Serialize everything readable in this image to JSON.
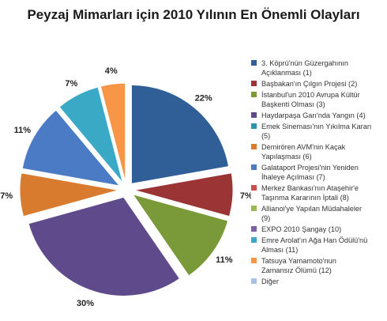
{
  "chart_data": {
    "type": "pie",
    "title": "Peyzaj Mimarları için 2010 Yılının En Önemli Olayları",
    "legend_position": "right",
    "slices": [
      {
        "label": "3. Köprü'nün Güzergahının\nAçıklanması (1)",
        "value": 22,
        "display": "22%",
        "color": "#2f5f96"
      },
      {
        "label": "Başbakan'ın Çılgın Projesi (2)",
        "value": 7,
        "display": "7%",
        "color": "#9b3434"
      },
      {
        "label": "İstanbul'un 2010 Avrupa Kültür\nBaşkenti Olması (3)",
        "value": 11,
        "display": "11%",
        "color": "#7a9a3a"
      },
      {
        "label": "Haydarpaşa Garı'nda Yangın (4)",
        "value": 30,
        "display": "30%",
        "color": "#5f4a8b"
      },
      {
        "label": "Emek Sineması'nın Yıkılma Kararı\n(5)",
        "value": 0,
        "display": "",
        "color": "#2e93ad"
      },
      {
        "label": "Demirören AVM'nin Kaçak\nYapılaşması (6)",
        "value": 7,
        "display": "7%",
        "color": "#d97b2f"
      },
      {
        "label": "Galataport Projesi'nin Yeniden\nİhaleye Açılması (7)",
        "value": 11,
        "display": "11%",
        "color": "#4a7bc4"
      },
      {
        "label": "Merkez Bankası'nın Ataşehir'e\nTaşınma Kararının İptali (8)",
        "value": 0,
        "display": "",
        "color": "#c9504f"
      },
      {
        "label": "Allianoi'ye Yapılan Müdahaleler\n(9)",
        "value": 0,
        "display": "",
        "color": "#98b954"
      },
      {
        "label": "EXPO 2010 Şangay (10)",
        "value": 0,
        "display": "",
        "color": "#7b60a8"
      },
      {
        "label": "Emre Arolat'ın Ağa Han Ödülü'nü\nAlması (11)",
        "value": 7,
        "display": "7%",
        "color": "#3aa9c6"
      },
      {
        "label": "Tatsuya Yamamoto'nun\nZamansız Ölümü (12)",
        "value": 4,
        "display": "4%",
        "color": "#f79646"
      },
      {
        "label": "Diğer",
        "value": 0,
        "display": "",
        "color": "#a9c1e6"
      }
    ]
  }
}
